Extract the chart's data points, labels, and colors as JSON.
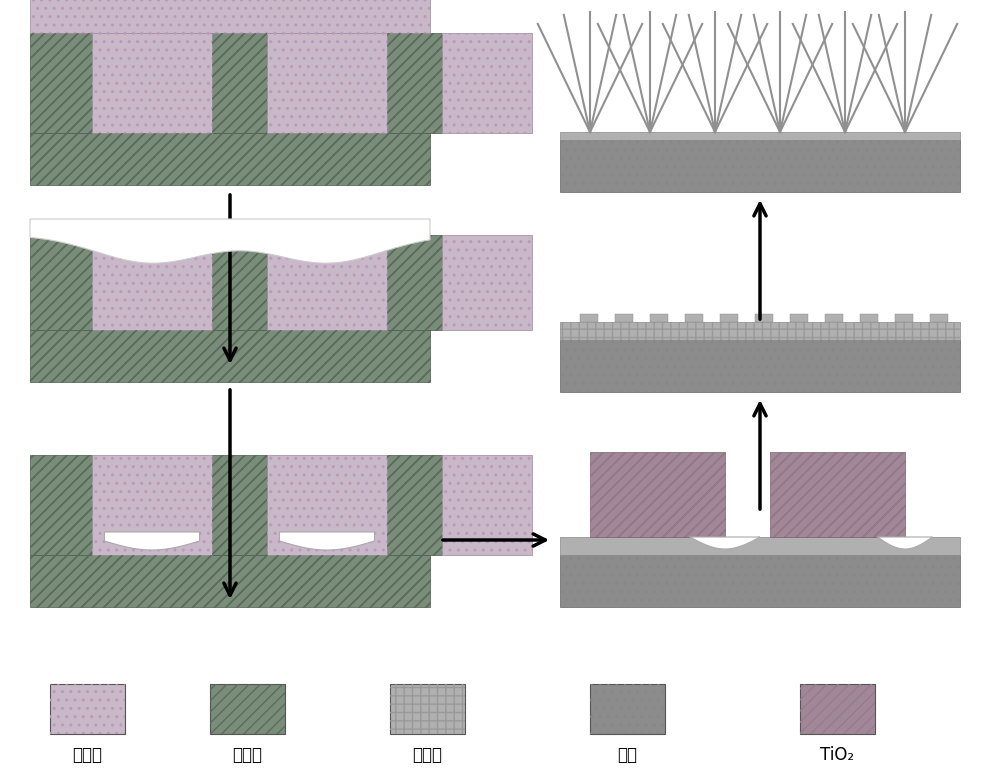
{
  "bg_color": "#ffffff",
  "precursor_color": "#c8b8c8",
  "mold_color": "#7a8c7a",
  "composite_color": "#b0b0b0",
  "substrate_color": "#8c8c8c",
  "tio2_color": "#a08898",
  "wire_color": "#909090",
  "label_fontsize": 12,
  "legend_items": [
    {
      "label": "前驱液",
      "color": "#c8b8c8",
      "hatch": ".."
    },
    {
      "label": "软模板",
      "color": "#7a8c7a",
      "hatch": "|||"
    },
    {
      "label": "复合膜",
      "color": "#b0b0b0",
      "hatch": "++"
    },
    {
      "label": "基底",
      "color": "#8c8c8c",
      "hatch": ".."
    },
    {
      "label": "TiO₂",
      "color": "#a08898",
      "hatch": "|||"
    }
  ]
}
